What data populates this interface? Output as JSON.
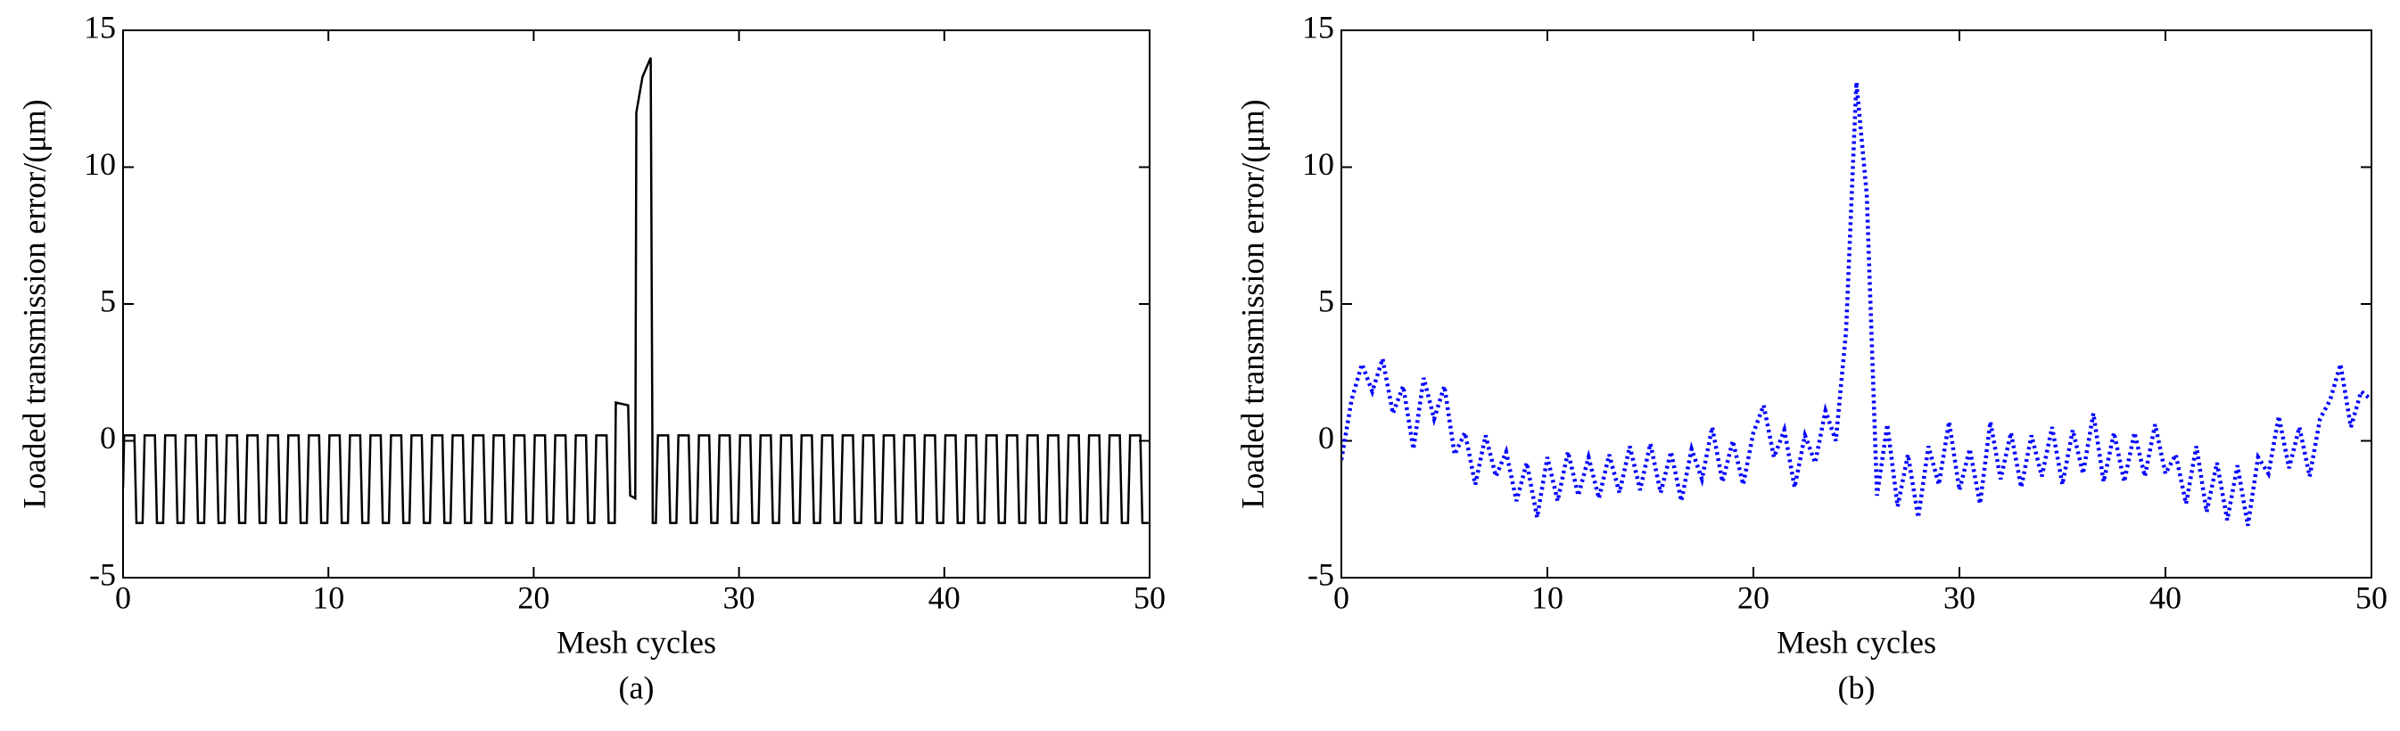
{
  "chart_data": [
    {
      "type": "line",
      "ylabel": "Loaded transmission error/(μm)",
      "xlabel": "Mesh cycles",
      "caption": "(a)",
      "xlim": [
        0,
        50
      ],
      "xticks": [
        0,
        10,
        20,
        30,
        40,
        50
      ],
      "ylim": [
        -5,
        15
      ],
      "yticks": [
        -5,
        0,
        5,
        10,
        15
      ],
      "color": "#000000",
      "line_style": "solid",
      "x": [
        0,
        0.05,
        0.55,
        0.65,
        0.95,
        1.05,
        1.55,
        1.65,
        1.95,
        2.05,
        2.55,
        2.65,
        2.95,
        3.05,
        3.55,
        3.65,
        3.95,
        4.05,
        4.55,
        4.65,
        4.95,
        5.05,
        5.55,
        5.65,
        5.95,
        6.05,
        6.55,
        6.65,
        6.95,
        7.05,
        7.55,
        7.65,
        7.95,
        8.05,
        8.55,
        8.65,
        8.95,
        9.05,
        9.55,
        9.65,
        9.95,
        10.05,
        10.55,
        10.65,
        10.95,
        11.05,
        11.55,
        11.65,
        11.95,
        12.05,
        12.55,
        12.65,
        12.95,
        13.05,
        13.55,
        13.65,
        13.95,
        14.05,
        14.55,
        14.65,
        14.95,
        15.05,
        15.55,
        15.65,
        15.95,
        16.05,
        16.55,
        16.65,
        16.95,
        17.05,
        17.55,
        17.65,
        17.95,
        18.05,
        18.55,
        18.65,
        18.95,
        19.05,
        19.55,
        19.65,
        19.95,
        20.05,
        20.55,
        20.65,
        20.95,
        21.05,
        21.55,
        21.65,
        21.95,
        22.05,
        22.55,
        22.65,
        22.95,
        23.05,
        23.55,
        23.65,
        23.95,
        24.0,
        24.6,
        24.7,
        24.95,
        25.0,
        25.3,
        25.7,
        25.8,
        25.95,
        26.05,
        26.55,
        26.65,
        26.95,
        27.05,
        27.55,
        27.65,
        27.95,
        28.05,
        28.55,
        28.65,
        28.95,
        29.05,
        29.55,
        29.65,
        29.95,
        30.05,
        30.55,
        30.65,
        30.95,
        31.05,
        31.55,
        31.65,
        31.95,
        32.05,
        32.55,
        32.65,
        32.95,
        33.05,
        33.55,
        33.65,
        33.95,
        34.05,
        34.55,
        34.65,
        34.95,
        35.05,
        35.55,
        35.65,
        35.95,
        36.05,
        36.55,
        36.65,
        36.95,
        37.05,
        37.55,
        37.65,
        37.95,
        38.05,
        38.55,
        38.65,
        38.95,
        39.05,
        39.55,
        39.65,
        39.95,
        40.05,
        40.55,
        40.65,
        40.95,
        41.05,
        41.55,
        41.65,
        41.95,
        42.05,
        42.55,
        42.65,
        42.95,
        43.05,
        43.55,
        43.65,
        43.95,
        44.05,
        44.55,
        44.65,
        44.95,
        45.05,
        45.55,
        45.65,
        45.95,
        46.05,
        46.55,
        46.65,
        46.95,
        47.05,
        47.55,
        47.65,
        47.95,
        48.05,
        48.55,
        48.65,
        48.95,
        49.05,
        49.55,
        49.65,
        49.95
      ],
      "values": [
        -1.7,
        0.2,
        0.2,
        -3,
        -3,
        0.2,
        0.2,
        -3,
        -3,
        0.2,
        0.2,
        -3,
        -3,
        0.2,
        0.2,
        -3,
        -3,
        0.2,
        0.2,
        -3,
        -3,
        0.2,
        0.2,
        -3,
        -3,
        0.2,
        0.2,
        -3,
        -3,
        0.2,
        0.2,
        -3,
        -3,
        0.2,
        0.2,
        -3,
        -3,
        0.2,
        0.2,
        -3,
        -3,
        0.2,
        0.2,
        -3,
        -3,
        0.2,
        0.2,
        -3,
        -3,
        0.2,
        0.2,
        -3,
        -3,
        0.2,
        0.2,
        -3,
        -3,
        0.2,
        0.2,
        -3,
        -3,
        0.2,
        0.2,
        -3,
        -3,
        0.2,
        0.2,
        -3,
        -3,
        0.2,
        0.2,
        -3,
        -3,
        0.2,
        0.2,
        -3,
        -3,
        0.2,
        0.2,
        -3,
        -3,
        0.2,
        0.2,
        -3,
        -3,
        0.2,
        0.2,
        -3,
        -3,
        0.2,
        0.2,
        -3,
        -3,
        0.2,
        0.2,
        -3,
        -3,
        1.4,
        1.3,
        -2,
        -2.1,
        12,
        13.3,
        14,
        -3,
        -3,
        0.2,
        0.2,
        -3,
        -3,
        0.2,
        0.2,
        -3,
        -3,
        0.2,
        0.2,
        -3,
        -3,
        0.2,
        0.2,
        -3,
        -3,
        0.2,
        0.2,
        -3,
        -3,
        0.2,
        0.2,
        -3,
        -3,
        0.2,
        0.2,
        -3,
        -3,
        0.2,
        0.2,
        -3,
        -3,
        0.2,
        0.2,
        -3,
        -3,
        0.2,
        0.2,
        -3,
        -3,
        0.2,
        0.2,
        -3,
        -3,
        0.2,
        0.2,
        -3,
        -3,
        0.2,
        0.2,
        -3,
        -3,
        0.2,
        0.2,
        -3,
        -3,
        0.2,
        0.2,
        -3,
        -3,
        0.2,
        0.2,
        -3,
        -3,
        0.2,
        0.2,
        -3,
        -3,
        0.2,
        0.2,
        -3,
        -3,
        0.2,
        0.2,
        -3,
        -3,
        0.2,
        0.2,
        -3,
        -3,
        0.2,
        0.2,
        -3,
        -3,
        0.2,
        0.2,
        -3,
        -3,
        0.2,
        0.2,
        -3,
        -3,
        0.2,
        0.2,
        -3,
        -3
      ]
    },
    {
      "type": "line",
      "ylabel": "Loaded transmission error/(μm)",
      "xlabel": "Mesh cycles",
      "caption": "(b)",
      "xlim": [
        0,
        50
      ],
      "xticks": [
        0,
        10,
        20,
        30,
        40,
        50
      ],
      "ylim": [
        -5,
        15
      ],
      "yticks": [
        -5,
        0,
        5,
        10,
        15
      ],
      "color": "#0000ff",
      "line_style": "dotted",
      "x": [
        0,
        0.5,
        1,
        1.5,
        2,
        2.5,
        3,
        3.5,
        4,
        4.5,
        5,
        5.5,
        6,
        6.5,
        7,
        7.5,
        8,
        8.5,
        9,
        9.5,
        10,
        10.5,
        11,
        11.5,
        12,
        12.5,
        13,
        13.5,
        14,
        14.5,
        15,
        15.5,
        16,
        16.5,
        17,
        17.5,
        18,
        18.5,
        19,
        19.5,
        20,
        20.5,
        21,
        21.5,
        22,
        22.5,
        23,
        23.5,
        24,
        24.5,
        25,
        25.5,
        26,
        26.5,
        27,
        27.5,
        28,
        28.5,
        29,
        29.5,
        30,
        30.5,
        31,
        31.5,
        32,
        32.5,
        33,
        33.5,
        34,
        34.5,
        35,
        35.5,
        36,
        36.5,
        37,
        37.5,
        38,
        38.5,
        39,
        39.5,
        40,
        40.5,
        41,
        41.5,
        42,
        42.5,
        43,
        43.5,
        44,
        44.5,
        45,
        45.5,
        46,
        46.5,
        47,
        47.5,
        48,
        48.5,
        49,
        49.5,
        50
      ],
      "values": [
        -0.7,
        1.5,
        2.8,
        1.8,
        3.0,
        1.0,
        2.0,
        -0.3,
        2.3,
        0.8,
        2.0,
        -0.5,
        0.3,
        -1.6,
        0.2,
        -1.3,
        -0.4,
        -2.2,
        -0.8,
        -2.8,
        -0.6,
        -2.2,
        -0.4,
        -2.0,
        -0.6,
        -2.1,
        -0.5,
        -1.9,
        -0.2,
        -1.8,
        -0.1,
        -1.9,
        -0.4,
        -2.2,
        -0.3,
        -1.4,
        0.5,
        -1.5,
        0,
        -1.6,
        0.3,
        1.3,
        -0.6,
        0.4,
        -1.7,
        0.2,
        -0.8,
        1.1,
        0,
        4,
        13.1,
        9,
        -2,
        0.6,
        -2.4,
        -0.5,
        -2.8,
        -0.2,
        -1.6,
        0.7,
        -1.8,
        -0.3,
        -2.3,
        0.7,
        -1.4,
        0.3,
        -1.7,
        0.2,
        -1.3,
        0.5,
        -1.6,
        0.4,
        -1.2,
        1.0,
        -1.5,
        0.3,
        -1.5,
        0.3,
        -1.3,
        0.6,
        -1.2,
        -0.5,
        -2.3,
        -0.2,
        -2.6,
        -0.8,
        -2.9,
        -0.9,
        -3.1,
        -0.6,
        -1.2,
        0.9,
        -1.0,
        0.5,
        -1.3,
        0.8,
        1.5,
        2.8,
        0.5,
        1.8,
        1.5
      ]
    }
  ]
}
